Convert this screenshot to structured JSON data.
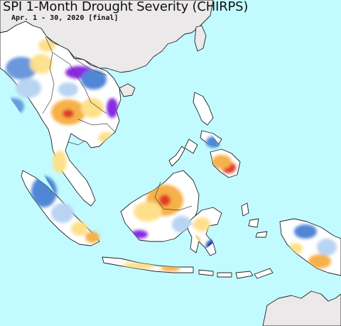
{
  "title": "SPI 1-Month Drought Severity (CHIRPS)",
  "subtitle": "Apr. 1 - 30, 2020 [final]",
  "colors": {
    "ocean": "#c2fbff",
    "outside_region": "#ece9ea",
    "land_normal": "#ffffff",
    "dry_moderate": "#ffe08a",
    "dry_severe": "#f7b14a",
    "dry_extreme": "#e03a2a",
    "wet_moderate": "#b9d4f2",
    "wet_severe": "#4f86d6",
    "wet_extreme": "#1d3fa8",
    "wet_exceptional": "#8a2be2"
  }
}
